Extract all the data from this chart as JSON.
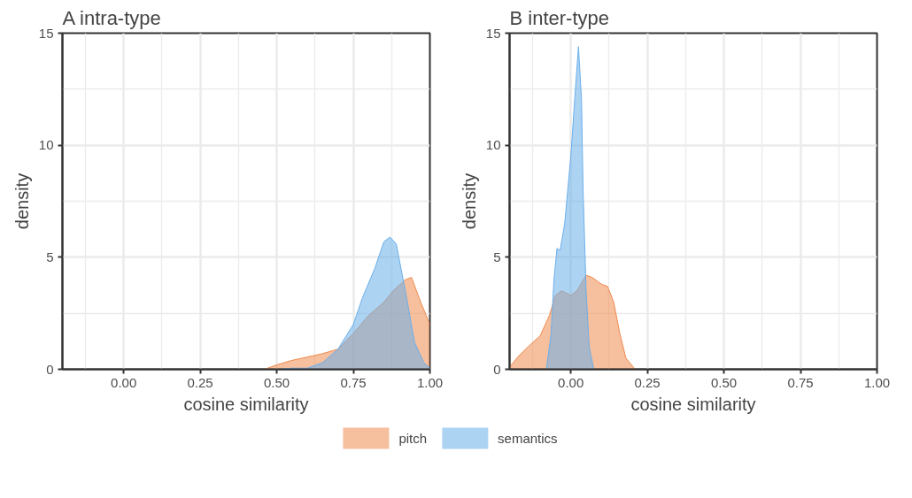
{
  "chart_data": [
    {
      "type": "area",
      "title": "A intra-type",
      "xlabel": "cosine similarity",
      "ylabel": "density",
      "xlim": [
        -0.2,
        1.0
      ],
      "ylim": [
        0,
        15
      ],
      "xticks": [
        {
          "value": 0,
          "label": "0.00"
        },
        {
          "value": 0.25,
          "label": "0.25"
        },
        {
          "value": 0.5,
          "label": "0.50"
        },
        {
          "value": 0.75,
          "label": "0.75"
        },
        {
          "value": 1.0,
          "label": "1.00"
        }
      ],
      "yticks": [
        0,
        5,
        10,
        15
      ],
      "grid": true,
      "legend": "bottom",
      "series": [
        {
          "name": "pitch",
          "color": "#ee8a4e",
          "x": [
            0.46,
            0.5,
            0.55,
            0.6,
            0.65,
            0.7,
            0.75,
            0.8,
            0.85,
            0.88,
            0.92,
            0.94,
            0.97,
            1.0
          ],
          "values": [
            0,
            0.2,
            0.4,
            0.55,
            0.7,
            0.9,
            1.6,
            2.4,
            3.0,
            3.5,
            4.0,
            4.1,
            3.0,
            2.0
          ]
        },
        {
          "name": "semantics",
          "color": "#6aafea",
          "x": [
            0.5,
            0.55,
            0.6,
            0.65,
            0.7,
            0.75,
            0.78,
            0.82,
            0.85,
            0.87,
            0.89,
            0.92,
            0.95,
            0.98,
            1.0
          ],
          "values": [
            0,
            0.05,
            0.05,
            0.3,
            0.9,
            2.0,
            3.2,
            4.5,
            5.7,
            5.9,
            5.6,
            3.5,
            1.2,
            0.3,
            0.05
          ]
        }
      ]
    },
    {
      "type": "area",
      "title": "B inter-type",
      "xlabel": "cosine similarity",
      "ylabel": "density",
      "xlim": [
        -0.2,
        1.0
      ],
      "ylim": [
        0,
        15
      ],
      "xticks": [
        {
          "value": 0,
          "label": "0.00"
        },
        {
          "value": 0.25,
          "label": "0.25"
        },
        {
          "value": 0.5,
          "label": "0.50"
        },
        {
          "value": 0.75,
          "label": "0.75"
        },
        {
          "value": 1.0,
          "label": "1.00"
        }
      ],
      "yticks": [
        0,
        5,
        10,
        15
      ],
      "grid": true,
      "series": [
        {
          "color": "#ee8a4e",
          "x": [
            -0.2,
            -0.17,
            -0.14,
            -0.1,
            -0.07,
            -0.05,
            -0.03,
            0,
            0.02,
            0.05,
            0.07,
            0.1,
            0.12,
            0.14,
            0.16,
            0.18,
            0.21
          ],
          "values": [
            0.1,
            0.6,
            1.0,
            1.5,
            2.4,
            3.3,
            3.5,
            3.3,
            3.5,
            4.2,
            4.1,
            3.8,
            3.7,
            3.0,
            1.6,
            0.5,
            0
          ]
        },
        {
          "color": "#6aafea",
          "x": [
            -0.08,
            -0.065,
            -0.055,
            -0.045,
            -0.035,
            -0.02,
            0,
            0.015,
            0.025,
            0.035,
            0.04,
            0.05,
            0.06,
            0.075
          ],
          "values": [
            0,
            1.5,
            4.0,
            5.4,
            5.3,
            6.5,
            9.5,
            12.5,
            14.4,
            12,
            8,
            3.5,
            1.0,
            0
          ]
        }
      ]
    }
  ]
}
